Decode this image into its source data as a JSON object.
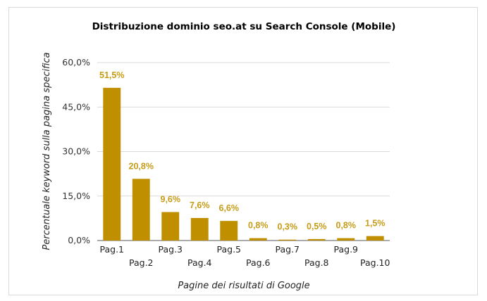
{
  "colors": {
    "bar": "#bf8f00",
    "data_label": "#c69c17",
    "grid": "#d9d9d9",
    "axis": "#595959"
  },
  "chart_data": {
    "type": "bar",
    "title": "Distribuzione dominio seo.at su Search Console (Mobile)",
    "xlabel": "Pagine dei risultati di Google",
    "ylabel": "Percentuale keyword sulla pagina specifica",
    "categories": [
      "Pag.1",
      "Pag.2",
      "Pag.3",
      "Pag.4",
      "Pag.5",
      "Pag.6",
      "Pag.7",
      "Pag.8",
      "Pag.9",
      "Pag.10"
    ],
    "values": [
      51.5,
      20.8,
      9.6,
      7.6,
      6.6,
      0.8,
      0.3,
      0.5,
      0.8,
      1.5
    ],
    "data_labels": [
      "51,5%",
      "20,8%",
      "9,6%",
      "7,6%",
      "6,6%",
      "0,8%",
      "0,3%",
      "0,5%",
      "0,8%",
      "1,5%"
    ],
    "y_ticks": [
      0,
      15,
      30,
      45,
      60
    ],
    "y_tick_labels": [
      "0,0%",
      "15,0%",
      "30,0%",
      "45,0%",
      "60,0%"
    ],
    "ylim": [
      0,
      60
    ],
    "grid": true,
    "legend": "none"
  }
}
